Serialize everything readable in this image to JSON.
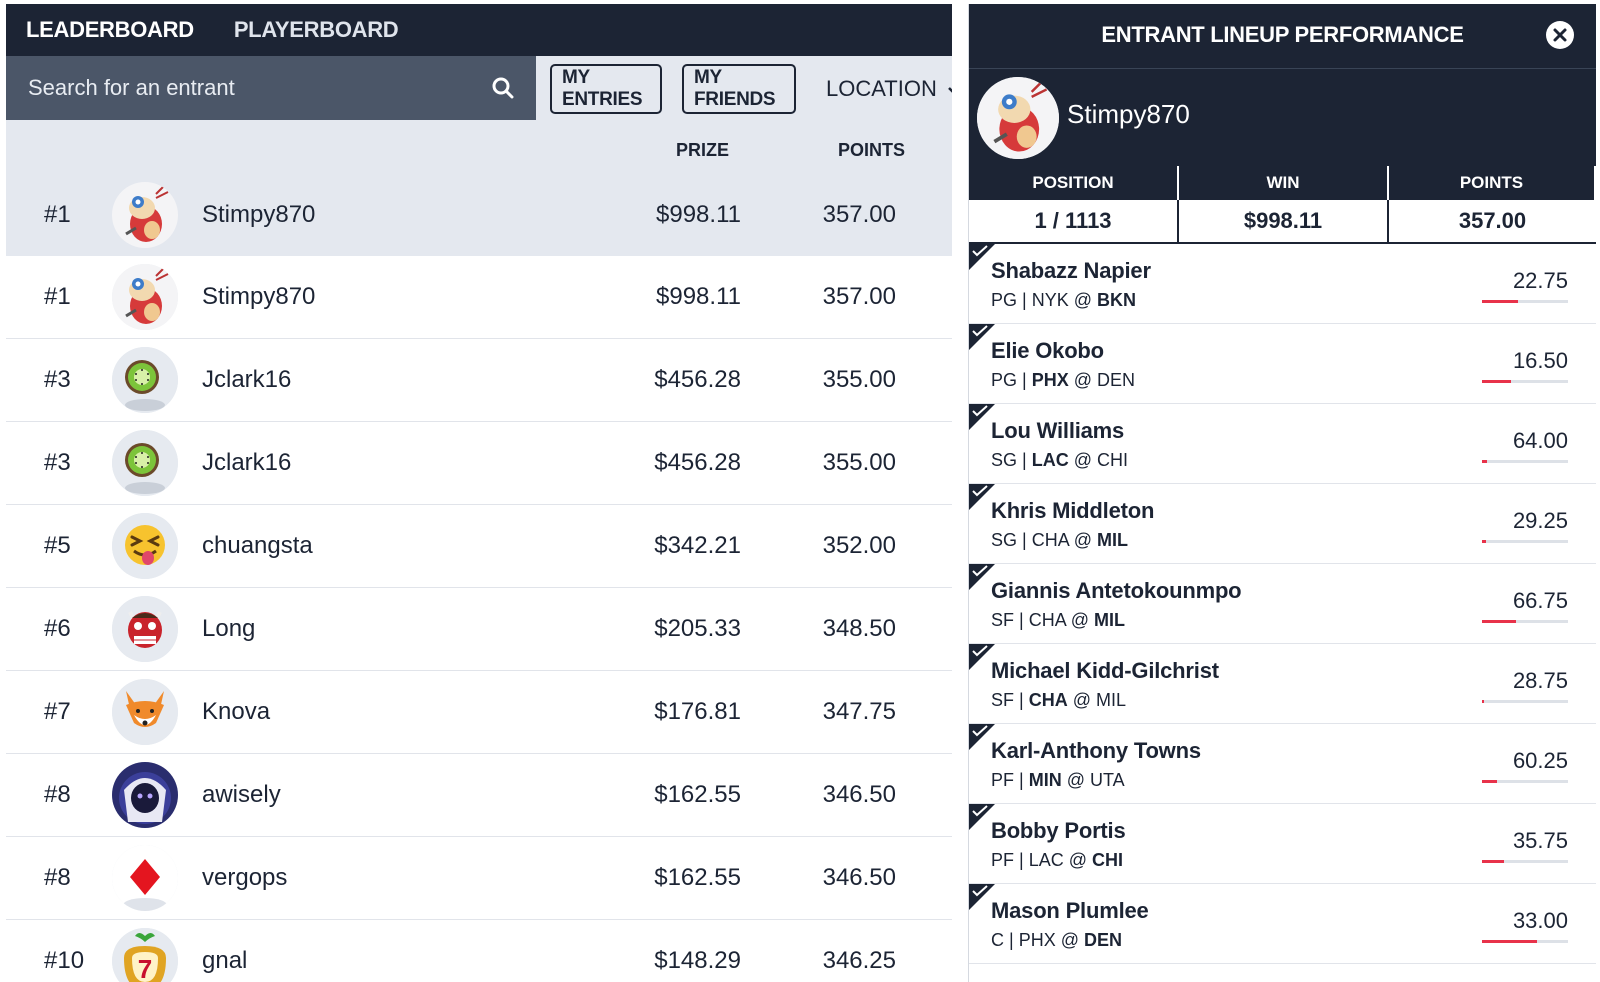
{
  "nav": {
    "tabs": [
      "LEADERBOARD",
      "PLAYERBOARD"
    ]
  },
  "toolbar": {
    "search_placeholder": "Search for an entrant",
    "my_entries": "MY ENTRIES",
    "my_friends": "MY FRIENDS",
    "location": "LOCATION"
  },
  "columns": {
    "prize": "PRIZE",
    "points": "POINTS"
  },
  "leaderboard": [
    {
      "rank": "#1",
      "name": "Stimpy870",
      "prize": "$998.11",
      "points": "357.00",
      "avatar": "cartoon-cat-avatar"
    },
    {
      "rank": "#1",
      "name": "Stimpy870",
      "prize": "$998.11",
      "points": "357.00",
      "avatar": "cartoon-cat-avatar"
    },
    {
      "rank": "#3",
      "name": "Jclark16",
      "prize": "$456.28",
      "points": "355.00",
      "avatar": "kiwi-avatar"
    },
    {
      "rank": "#3",
      "name": "Jclark16",
      "prize": "$456.28",
      "points": "355.00",
      "avatar": "kiwi-avatar"
    },
    {
      "rank": "#5",
      "name": "chuangsta",
      "prize": "$342.21",
      "points": "352.00",
      "avatar": "tongue-emoji-avatar"
    },
    {
      "rank": "#6",
      "name": "Long",
      "prize": "$205.33",
      "points": "348.50",
      "avatar": "ogre-mask-avatar"
    },
    {
      "rank": "#7",
      "name": "Knova",
      "prize": "$176.81",
      "points": "347.75",
      "avatar": "fox-avatar"
    },
    {
      "rank": "#8",
      "name": "awisely",
      "prize": "$162.55",
      "points": "346.50",
      "avatar": "hooded-character-avatar"
    },
    {
      "rank": "#8",
      "name": "vergops",
      "prize": "$162.55",
      "points": "346.50",
      "avatar": "red-diamond-avatar"
    },
    {
      "rank": "#10",
      "name": "gnal",
      "prize": "$148.29",
      "points": "346.25",
      "avatar": "lucky-seven-avatar"
    }
  ],
  "lineup": {
    "title": "ENTRANT LINEUP PERFORMANCE",
    "user": "Stimpy870",
    "stat_headers": [
      "POSITION",
      "WIN",
      "POINTS"
    ],
    "stat_values": [
      "1 / 1113",
      "$998.11",
      "357.00"
    ],
    "players": [
      {
        "name": "Shabazz Napier",
        "pos": "PG",
        "away": "NYK",
        "home": "BKN",
        "bold": "home",
        "points": "22.75",
        "progress": 0.42
      },
      {
        "name": "Elie Okobo",
        "pos": "PG",
        "away": "PHX",
        "home": "DEN",
        "bold": "away",
        "points": "16.50",
        "progress": 0.34
      },
      {
        "name": "Lou Williams",
        "pos": "SG",
        "away": "LAC",
        "home": "CHI",
        "bold": "away",
        "points": "64.00",
        "progress": 0.06
      },
      {
        "name": "Khris Middleton",
        "pos": "SG",
        "away": "CHA",
        "home": "MIL",
        "bold": "home",
        "points": "29.25",
        "progress": 0.05
      },
      {
        "name": "Giannis Antetokounmpo",
        "pos": "SF",
        "away": "CHA",
        "home": "MIL",
        "bold": "home",
        "points": "66.75",
        "progress": 0.4
      },
      {
        "name": "Michael Kidd-Gilchrist",
        "pos": "SF",
        "away": "CHA",
        "home": "MIL",
        "bold": "away",
        "points": "28.75",
        "progress": 0.02
      },
      {
        "name": "Karl-Anthony Towns",
        "pos": "PF",
        "away": "MIN",
        "home": "UTA",
        "bold": "away",
        "points": "60.25",
        "progress": 0.17
      },
      {
        "name": "Bobby Portis",
        "pos": "PF",
        "away": "LAC",
        "home": "CHI",
        "bold": "home",
        "points": "35.75",
        "progress": 0.26
      },
      {
        "name": "Mason Plumlee",
        "pos": "C",
        "away": "PHX",
        "home": "DEN",
        "bold": "home",
        "points": "33.00",
        "progress": 0.64
      }
    ]
  },
  "colors": {
    "navy": "#1c2434",
    "slate": "#4b5668",
    "light": "#e4e8ef",
    "accent": "#e8324a"
  }
}
